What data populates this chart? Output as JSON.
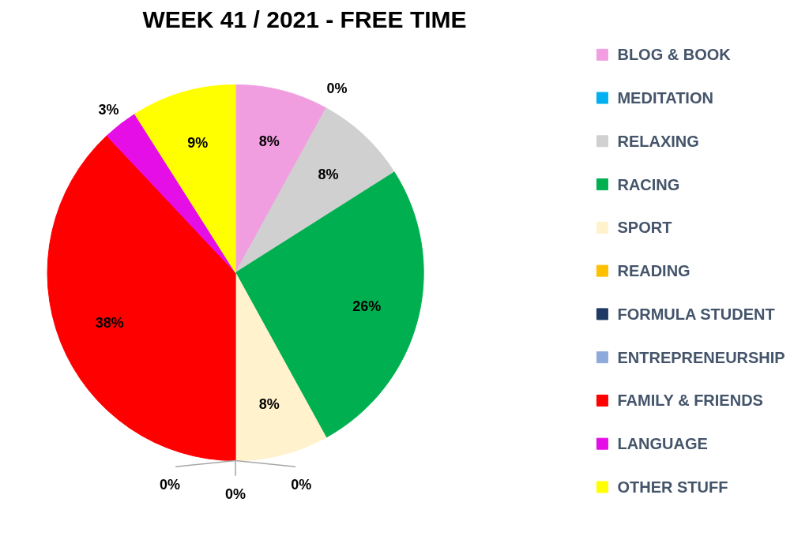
{
  "chart_data": {
    "type": "pie",
    "title": "WEEK 41 / 2021 - FREE TIME",
    "categories": [
      "BLOG & BOOK",
      "MEDITATION",
      "RELAXING",
      "RACING",
      "SPORT",
      "READING",
      "FORMULA STUDENT",
      "ENTREPRENEURSHIP",
      "FAMILY & FRIENDS",
      "LANGUAGE",
      "OTHER STUFF"
    ],
    "values": [
      8,
      0,
      8,
      26,
      8,
      0,
      0,
      0,
      38,
      3,
      9
    ],
    "colors": [
      "#f09ee0",
      "#00b0f0",
      "#d0d0d0",
      "#00b050",
      "#fff2cc",
      "#ffc000",
      "#1f3864",
      "#8eaadb",
      "#ff0000",
      "#e60ee6",
      "#ffff00"
    ],
    "value_labels": [
      "8%",
      "0%",
      "8%",
      "26%",
      "8%",
      "0%",
      "0%",
      "0%",
      "38%",
      "3%",
      "9%"
    ],
    "legend": "right"
  }
}
